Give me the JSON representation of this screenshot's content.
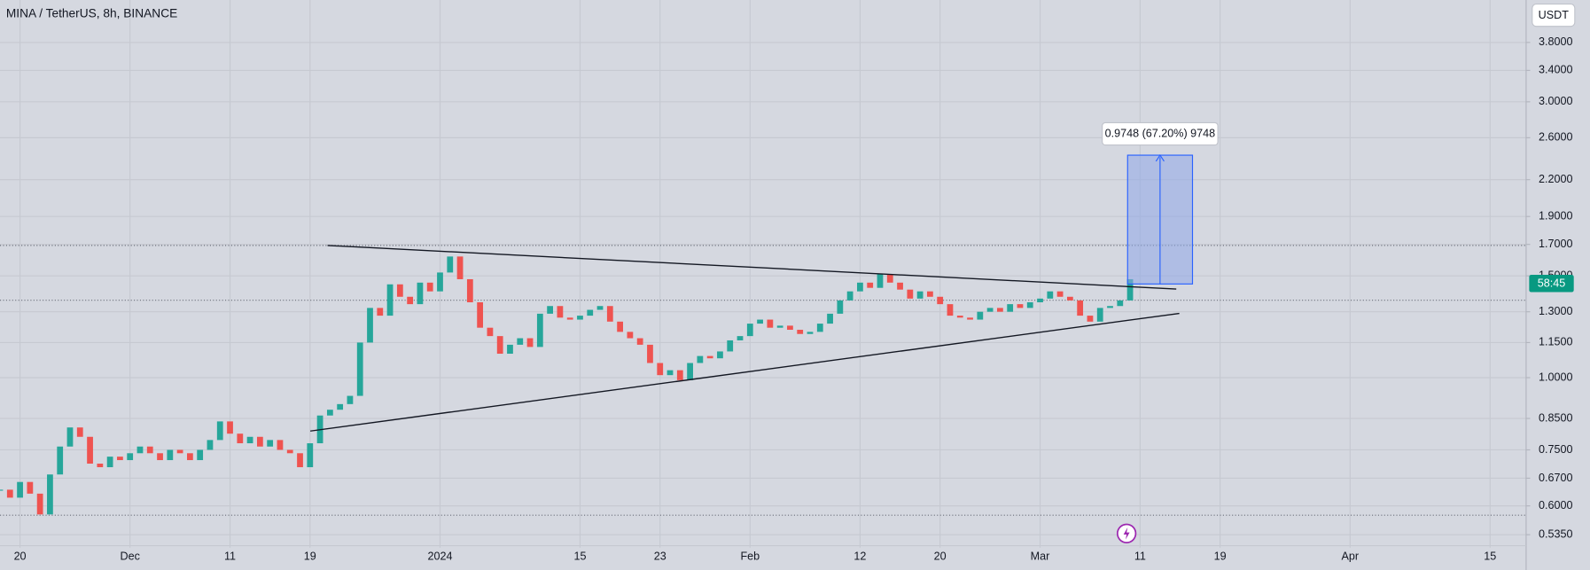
{
  "header": {
    "title": "MINA / TetherUS, 8h, BINANCE",
    "currency": "USDT"
  },
  "chart_data": {
    "type": "candlestick",
    "closes": [
      0.64,
      0.62,
      0.66,
      0.63,
      0.58,
      0.68,
      0.76,
      0.82,
      0.79,
      0.71,
      0.7,
      0.73,
      0.72,
      0.74,
      0.76,
      0.74,
      0.72,
      0.75,
      0.74,
      0.72,
      0.75,
      0.78,
      0.84,
      0.8,
      0.77,
      0.79,
      0.76,
      0.78,
      0.75,
      0.74,
      0.7,
      0.77,
      0.86,
      0.88,
      0.9,
      0.93,
      1.15,
      1.32,
      1.28,
      1.45,
      1.38,
      1.34,
      1.46,
      1.41,
      1.52,
      1.62,
      1.48,
      1.35,
      1.22,
      1.18,
      1.1,
      1.14,
      1.17,
      1.13,
      1.29,
      1.33,
      1.27,
      1.26,
      1.28,
      1.31,
      1.33,
      1.25,
      1.2,
      1.17,
      1.14,
      1.06,
      1.01,
      1.03,
      0.99,
      1.06,
      1.09,
      1.08,
      1.11,
      1.16,
      1.18,
      1.24,
      1.26,
      1.22,
      1.23,
      1.21,
      1.19,
      1.2,
      1.24,
      1.29,
      1.36,
      1.41,
      1.46,
      1.43,
      1.51,
      1.46,
      1.42,
      1.37,
      1.41,
      1.38,
      1.34,
      1.28,
      1.27,
      1.26,
      1.3,
      1.32,
      1.3,
      1.34,
      1.32,
      1.35,
      1.37,
      1.41,
      1.38,
      1.36,
      1.28,
      1.25,
      1.32,
      1.33,
      1.36,
      1.48
    ],
    "up_color": "#26a69a",
    "down_color": "#ef5350",
    "xlim": [
      0,
      152.6
    ],
    "ylim": [
      0.508,
      4.5
    ],
    "log_scale": true,
    "grid": true,
    "xticks": [
      {
        "value": 2,
        "label": "20"
      },
      {
        "value": 13,
        "label": "Dec"
      },
      {
        "value": 23,
        "label": "11"
      },
      {
        "value": 31,
        "label": "19"
      },
      {
        "value": 44,
        "label": "2024"
      },
      {
        "value": 58,
        "label": "15"
      },
      {
        "value": 66,
        "label": "23"
      },
      {
        "value": 75,
        "label": "Feb"
      },
      {
        "value": 86,
        "label": "12"
      },
      {
        "value": 94,
        "label": "20"
      },
      {
        "value": 104,
        "label": "Mar"
      },
      {
        "value": 114,
        "label": "11"
      },
      {
        "value": 122,
        "label": "19"
      },
      {
        "value": 135,
        "label": "Apr"
      },
      {
        "value": 149,
        "label": "15"
      }
    ],
    "yticks": [
      {
        "value": 3.8,
        "label": "3.8000"
      },
      {
        "value": 3.4,
        "label": "3.4000"
      },
      {
        "value": 3.0,
        "label": "3.0000"
      },
      {
        "value": 2.6,
        "label": "2.6000"
      },
      {
        "value": 2.2,
        "label": "2.2000"
      },
      {
        "value": 1.9,
        "label": "1.9000"
      },
      {
        "value": 1.7,
        "label": "1.7000"
      },
      {
        "value": 1.5,
        "label": "1.5000"
      },
      {
        "value": 1.3,
        "label": "1.3000"
      },
      {
        "value": 1.15,
        "label": "1.1500"
      },
      {
        "value": 1.0,
        "label": "1.0000"
      },
      {
        "value": 0.85,
        "label": "0.8500"
      },
      {
        "value": 0.75,
        "label": "0.7500"
      },
      {
        "value": 0.67,
        "label": "0.6700"
      },
      {
        "value": 0.6,
        "label": "0.6000"
      },
      {
        "value": 0.535,
        "label": "0.5350"
      }
    ]
  },
  "measure": {
    "label": "0.9748 (67.20%) 9748"
  },
  "countdown": "58:45"
}
